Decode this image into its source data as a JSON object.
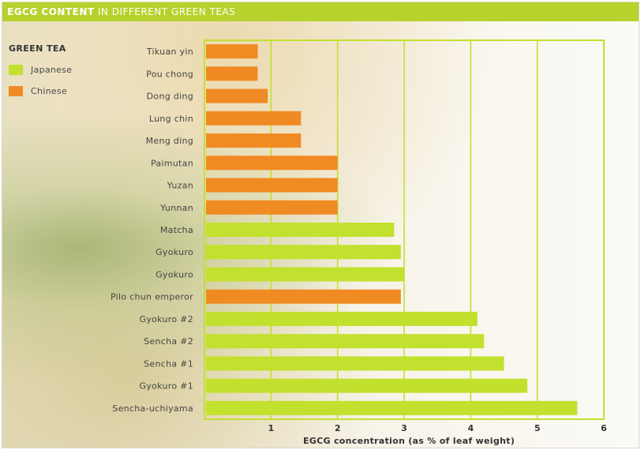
{
  "title": {
    "bold": "EGCG CONTENT",
    "rest": " IN DIFFERENT GREEN TEAS"
  },
  "legend": {
    "title": "GREEN TEA",
    "items": [
      {
        "label": "Japanese",
        "color": "#c2e02e"
      },
      {
        "label": "Chinese",
        "color": "#f08a23"
      }
    ]
  },
  "chart_data": {
    "type": "bar",
    "orientation": "horizontal",
    "title": "EGCG CONTENT IN DIFFERENT GREEN TEAS",
    "xlabel": "EGCG concentration (as % of leaf weight)",
    "ylabel": "",
    "xlim": [
      0,
      6
    ],
    "xticks": [
      1,
      2,
      3,
      4,
      5,
      6
    ],
    "grid": "vertical",
    "legend": "top-left",
    "colors": {
      "Japanese": "#c2e02e",
      "Chinese": "#f08a23"
    },
    "bars": [
      {
        "category": "Tikuan yin",
        "value": 0.8,
        "series": "Chinese"
      },
      {
        "category": "Pou chong",
        "value": 0.8,
        "series": "Chinese"
      },
      {
        "category": "Dong ding",
        "value": 0.95,
        "series": "Chinese"
      },
      {
        "category": "Lung chin",
        "value": 1.45,
        "series": "Chinese"
      },
      {
        "category": "Meng ding",
        "value": 1.45,
        "series": "Chinese"
      },
      {
        "category": "Paimutan",
        "value": 2.0,
        "series": "Chinese"
      },
      {
        "category": "Yuzan",
        "value": 2.0,
        "series": "Chinese"
      },
      {
        "category": "Yunnan",
        "value": 2.0,
        "series": "Chinese"
      },
      {
        "category": "Matcha",
        "value": 2.85,
        "series": "Japanese"
      },
      {
        "category": "Gyokuro",
        "value": 2.95,
        "series": "Japanese"
      },
      {
        "category": "Gyokuro",
        "value": 3.0,
        "series": "Japanese"
      },
      {
        "category": "Pilo chun emperor",
        "value": 2.95,
        "series": "Chinese"
      },
      {
        "category": "Gyokuro #2",
        "value": 4.1,
        "series": "Japanese"
      },
      {
        "category": "Sencha #2",
        "value": 4.2,
        "series": "Japanese"
      },
      {
        "category": "Sencha #1",
        "value": 4.5,
        "series": "Japanese"
      },
      {
        "category": "Gyokuro #1",
        "value": 4.85,
        "series": "Japanese"
      },
      {
        "category": "Sencha-uchiyama",
        "value": 5.6,
        "series": "Japanese"
      }
    ]
  }
}
